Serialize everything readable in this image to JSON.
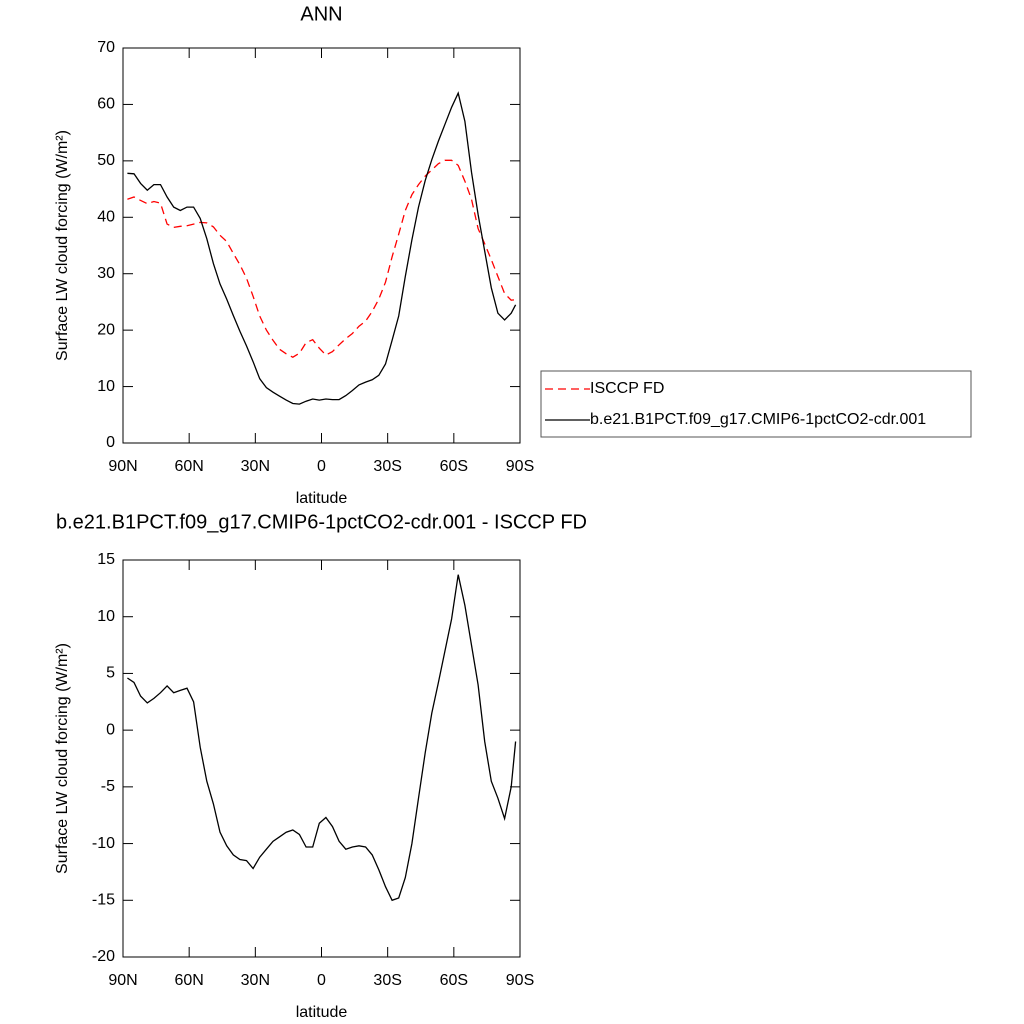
{
  "chart_data": [
    {
      "type": "line",
      "title": "ANN",
      "xlabel": "latitude",
      "ylabel": "Surface LW cloud forcing (W/m²)",
      "x": [
        88,
        85,
        82,
        79,
        76,
        73,
        70,
        67,
        64,
        61,
        58,
        55,
        52,
        49,
        46,
        43,
        40,
        37,
        34,
        31,
        28,
        25,
        22,
        19,
        16,
        13,
        10,
        7,
        4,
        1,
        -2,
        -5,
        -8,
        -11,
        -14,
        -17,
        -20,
        -23,
        -26,
        -29,
        -32,
        -35,
        -38,
        -41,
        -44,
        -47,
        -50,
        -53,
        -56,
        -59,
        -62,
        -65,
        -68,
        -71,
        -74,
        -77,
        -80,
        -83,
        -86,
        -88
      ],
      "series": [
        {
          "name": "ISCCP FD",
          "color": "#ff0000",
          "dashed": true,
          "values": [
            43.2,
            43.6,
            43,
            42.4,
            42.8,
            42.5,
            38.8,
            38.2,
            38.4,
            38.5,
            38.8,
            39.1,
            39,
            38.3,
            36.8,
            35.7,
            33.6,
            31.6,
            29.2,
            26,
            22.5,
            20,
            18.2,
            16.6,
            15.8,
            15.2,
            15.9,
            17.8,
            18.3,
            16.8,
            15.6,
            16.2,
            17.4,
            18.5,
            19.4,
            20.7,
            21.6,
            23.3,
            25.5,
            28.5,
            33,
            37,
            41.2,
            44,
            45.8,
            47.3,
            48.4,
            49.5,
            50.1,
            50.1,
            49.2,
            46.4,
            43.2,
            38,
            35.3,
            32.5,
            29.5,
            26.5,
            25.3,
            25.4
          ]
        },
        {
          "name": "b.e21.B1PCT.f09_g17.CMIP6-1pctCO2-cdr.001",
          "color": "#000000",
          "dashed": false,
          "values": [
            47.8,
            47.7,
            46,
            44.8,
            45.8,
            45.8,
            43.6,
            41.8,
            41.2,
            41.8,
            41.8,
            39.8,
            36.2,
            31.8,
            28.2,
            25.5,
            22.6,
            19.8,
            17.2,
            14.4,
            11.4,
            9.8,
            9,
            8.3,
            7.6,
            7,
            6.9,
            7.4,
            7.8,
            7.6,
            7.8,
            7.7,
            7.7,
            8.4,
            9.3,
            10.3,
            10.8,
            11.2,
            12,
            14,
            18.2,
            22.5,
            29.5,
            36,
            41.8,
            46.5,
            50.2,
            53.5,
            56.5,
            59.5,
            62,
            57,
            48,
            40.5,
            34,
            27.5,
            23,
            21.8,
            23,
            24.5
          ]
        }
      ],
      "xlim": [
        90,
        -90
      ],
      "xticks": [
        {
          "value": 90,
          "label": "90N"
        },
        {
          "value": 60,
          "label": "60N"
        },
        {
          "value": 30,
          "label": "30N"
        },
        0,
        {
          "value": -30,
          "label": "30S"
        },
        {
          "value": -60,
          "label": "60S"
        },
        {
          "value": -90,
          "label": "90S"
        }
      ],
      "ylim": [
        0,
        70
      ],
      "yticks": [
        0,
        10,
        20,
        30,
        40,
        50,
        60,
        70
      ],
      "legend": "right"
    },
    {
      "type": "line",
      "title": "b.e21.B1PCT.f09_g17.CMIP6-1pctCO2-cdr.001 - ISCCP FD",
      "xlabel": "latitude",
      "ylabel": "Surface LW cloud forcing (W/m²)",
      "x": [
        88,
        85,
        82,
        79,
        76,
        73,
        70,
        67,
        64,
        61,
        58,
        55,
        52,
        49,
        46,
        43,
        40,
        37,
        34,
        31,
        28,
        25,
        22,
        19,
        16,
        13,
        10,
        7,
        4,
        1,
        -2,
        -5,
        -8,
        -11,
        -14,
        -17,
        -20,
        -23,
        -26,
        -29,
        -32,
        -35,
        -38,
        -41,
        -44,
        -47,
        -50,
        -53,
        -56,
        -59,
        -62,
        -65,
        -68,
        -71,
        -74,
        -77,
        -80,
        -83,
        -86,
        -88
      ],
      "color": "#000000",
      "values": [
        4.6,
        4.2,
        3,
        2.4,
        2.8,
        3.3,
        3.9,
        3.3,
        3.5,
        3.7,
        2.5,
        -1.5,
        -4.5,
        -6.5,
        -9,
        -10.2,
        -11,
        -11.4,
        -11.5,
        -12.2,
        -11.2,
        -10.5,
        -9.8,
        -9.4,
        -9,
        -8.8,
        -9.2,
        -10.3,
        -10.3,
        -8.2,
        -7.7,
        -8.5,
        -9.8,
        -10.5,
        -10.3,
        -10.2,
        -10.3,
        -11,
        -12.3,
        -13.8,
        -15,
        -14.8,
        -13,
        -10,
        -6,
        -2,
        1.5,
        4.2,
        7,
        9.8,
        13.7,
        11,
        7.5,
        4,
        -1,
        -4.5,
        -6,
        -7.8,
        -5,
        -1
      ],
      "xlim": [
        90,
        -90
      ],
      "xticks": [
        {
          "value": 90,
          "label": "90N"
        },
        {
          "value": 60,
          "label": "60N"
        },
        {
          "value": 30,
          "label": "30N"
        },
        0,
        {
          "value": -30,
          "label": "30S"
        },
        {
          "value": -60,
          "label": "60S"
        },
        {
          "value": -90,
          "label": "90S"
        }
      ],
      "ylim": [
        -20,
        15
      ],
      "yticks": [
        -20,
        -15,
        -10,
        -5,
        0,
        5,
        10,
        15
      ]
    }
  ]
}
